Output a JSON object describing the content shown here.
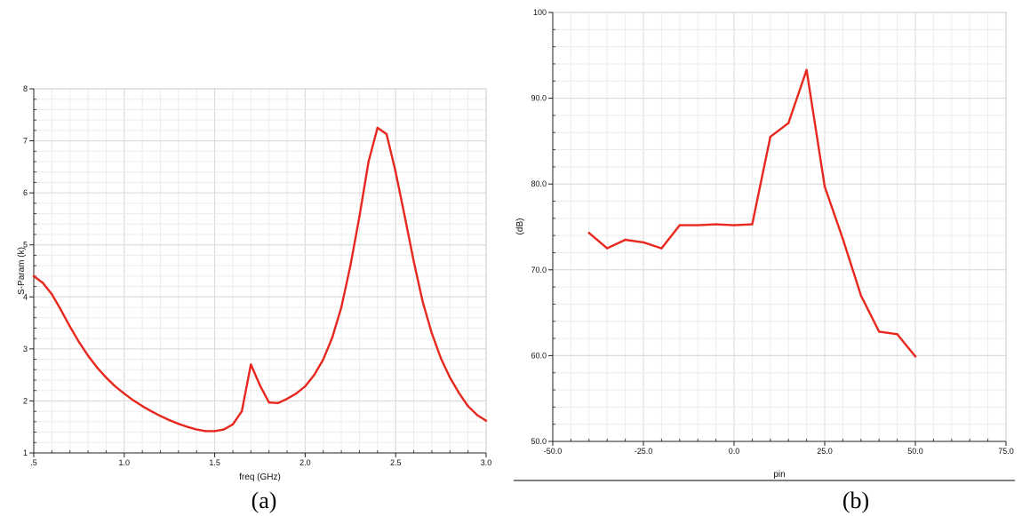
{
  "chart_data": [
    {
      "type": "line",
      "caption": "(a)",
      "xlabel": "freq (GHz)",
      "ylabel": "S-Param (k)",
      "xlim": [
        0.5,
        3.0
      ],
      "ylim": [
        1,
        8
      ],
      "x_ticks": [
        ".5",
        "1.0",
        "1.5",
        "2.0",
        "2.5",
        "3.0"
      ],
      "x_tick_values": [
        0.5,
        1.0,
        1.5,
        2.0,
        2.5,
        3.0
      ],
      "y_ticks": [
        "1",
        "2",
        "3",
        "4",
        "5",
        "6",
        "7",
        "8"
      ],
      "y_tick_values": [
        1,
        2,
        3,
        4,
        5,
        6,
        7,
        8
      ],
      "grid": true,
      "line_color": "#e8281e",
      "series": [
        {
          "x": [
            0.5,
            0.55,
            0.6,
            0.65,
            0.7,
            0.75,
            0.8,
            0.85,
            0.9,
            0.95,
            1.0,
            1.05,
            1.1,
            1.15,
            1.2,
            1.25,
            1.3,
            1.35,
            1.4,
            1.45,
            1.5,
            1.55,
            1.6,
            1.65,
            1.7,
            1.75,
            1.8,
            1.85,
            1.9,
            1.95,
            2.0,
            2.05,
            2.1,
            2.15,
            2.2,
            2.25,
            2.3,
            2.35,
            2.4,
            2.45,
            2.5,
            2.55,
            2.6,
            2.65,
            2.7,
            2.75,
            2.8,
            2.85,
            2.9,
            2.95,
            3.0
          ],
          "values": [
            4.4,
            4.27,
            4.05,
            3.75,
            3.43,
            3.13,
            2.87,
            2.64,
            2.45,
            2.28,
            2.14,
            2.01,
            1.9,
            1.8,
            1.71,
            1.63,
            1.56,
            1.5,
            1.45,
            1.42,
            1.42,
            1.45,
            1.55,
            1.8,
            2.7,
            2.3,
            1.97,
            1.96,
            2.04,
            2.14,
            2.28,
            2.5,
            2.8,
            3.22,
            3.8,
            4.6,
            5.55,
            6.6,
            7.25,
            7.13,
            6.4,
            5.55,
            4.68,
            3.9,
            3.3,
            2.82,
            2.45,
            2.15,
            1.9,
            1.73,
            1.62
          ]
        }
      ]
    },
    {
      "type": "line",
      "caption": "(b)",
      "xlabel": "pin",
      "ylabel": "(dB)",
      "xlim": [
        -50,
        75
      ],
      "ylim": [
        50,
        100
      ],
      "x_ticks": [
        "-50.0",
        "-25.0",
        "0.0",
        "25.0",
        "50.0",
        "75.0"
      ],
      "x_tick_values": [
        -50,
        -25,
        0,
        25,
        50,
        75
      ],
      "y_ticks": [
        "50.0",
        "60.0",
        "70.0",
        "80.0",
        "90.0",
        "100"
      ],
      "y_tick_values": [
        50,
        60,
        70,
        80,
        90,
        100
      ],
      "grid": true,
      "line_color": "#e8281e",
      "series": [
        {
          "x": [
            -40,
            -35,
            -30,
            -25,
            -20,
            -15,
            -10,
            -5,
            0,
            5,
            10,
            15,
            20,
            25,
            30,
            35,
            40,
            45,
            50
          ],
          "values": [
            74.3,
            72.5,
            73.5,
            73.2,
            72.5,
            75.2,
            75.2,
            75.3,
            75.2,
            75.3,
            85.5,
            87.1,
            93.3,
            79.7,
            73.6,
            67.0,
            62.8,
            62.5,
            59.9
          ]
        }
      ]
    }
  ]
}
